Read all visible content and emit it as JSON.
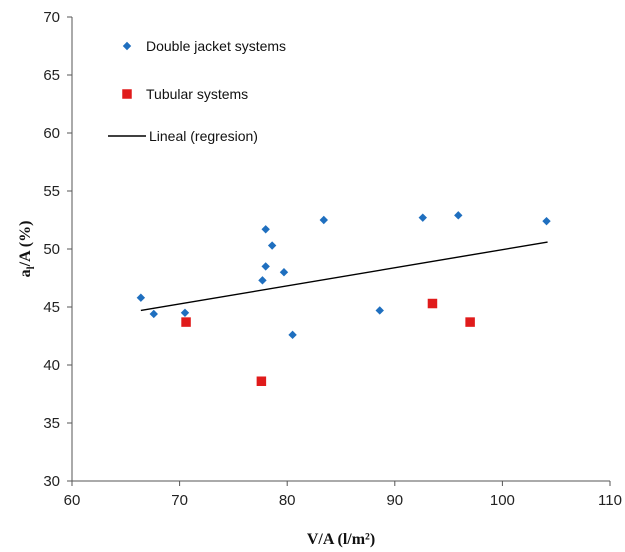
{
  "chart_data": {
    "type": "scatter",
    "title": "",
    "xlabel": "V/A (l/m²)",
    "ylabel_main": "a",
    "ylabel_sub": "l",
    "ylabel_rest": "/A  (%)",
    "xlim": [
      60,
      110
    ],
    "ylim": [
      30,
      70
    ],
    "xticks": [
      60,
      70,
      80,
      90,
      100,
      110
    ],
    "yticks": [
      30,
      35,
      40,
      45,
      50,
      55,
      60,
      65,
      70
    ],
    "grid": false,
    "legend_position": "top-left",
    "series": [
      {
        "name": "Double jacket systems",
        "marker": "diamond",
        "color": "#1f6fbf",
        "points": [
          [
            66.4,
            45.8
          ],
          [
            67.6,
            44.4
          ],
          [
            70.5,
            44.5
          ],
          [
            77.7,
            47.3
          ],
          [
            78.0,
            51.7
          ],
          [
            78.0,
            48.5
          ],
          [
            78.6,
            50.3
          ],
          [
            79.7,
            48.0
          ],
          [
            80.5,
            42.6
          ],
          [
            83.4,
            52.5
          ],
          [
            88.6,
            44.7
          ],
          [
            92.6,
            52.7
          ],
          [
            95.9,
            52.9
          ],
          [
            104.1,
            52.4
          ]
        ]
      },
      {
        "name": "Tubular systems",
        "marker": "square",
        "color": "#e01b1b",
        "points": [
          [
            70.6,
            43.7
          ],
          [
            77.6,
            38.6
          ],
          [
            93.5,
            45.3
          ],
          [
            97.0,
            43.7
          ]
        ]
      },
      {
        "name": "Lineal (regresion)",
        "marker": "line",
        "color": "#000000",
        "points": [
          [
            66.4,
            44.7
          ],
          [
            104.2,
            50.6
          ]
        ]
      }
    ]
  }
}
